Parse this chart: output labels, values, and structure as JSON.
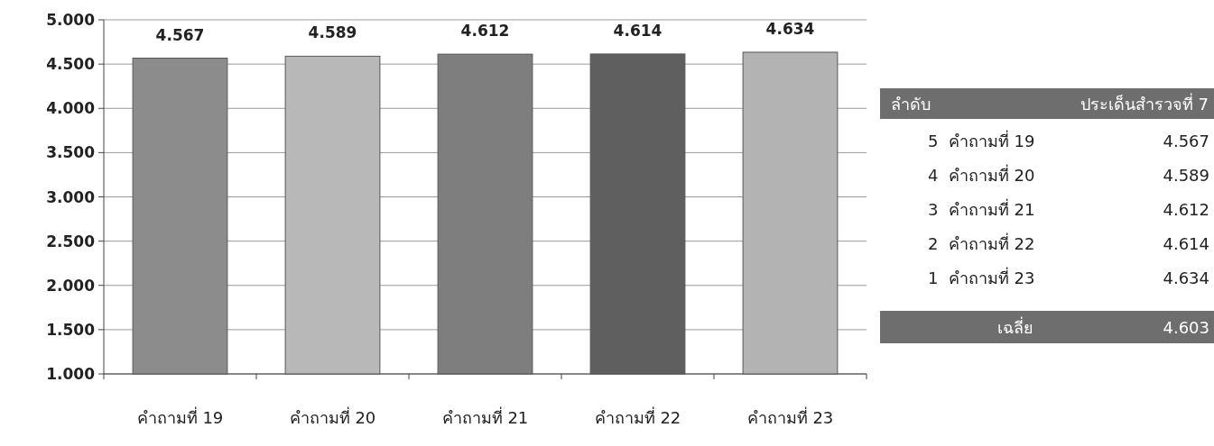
{
  "chart_data": [
    {
      "type": "bar",
      "categories": [
        "คำถามที่ 19",
        "คำถามที่ 20",
        "คำถามที่ 21",
        "คำถามที่ 22",
        "คำถามที่ 23"
      ],
      "values": [
        4.567,
        4.589,
        4.612,
        4.614,
        4.634
      ],
      "colors": [
        "#8c8c8c",
        "#b8b8b8",
        "#7e7e7e",
        "#5f5f5f",
        "#b3b3b3"
      ],
      "ylim": [
        1,
        5
      ],
      "yticks": [
        {
          "value": 1,
          "label": "1.000"
        },
        {
          "value": 1.5,
          "label": "1.500"
        },
        {
          "value": 2,
          "label": "2.000"
        },
        {
          "value": 2.5,
          "label": "2.500"
        },
        {
          "value": 3,
          "label": "3.000"
        },
        {
          "value": 3.5,
          "label": "3.500"
        },
        {
          "value": 4,
          "label": "4.000"
        },
        {
          "value": 4.5,
          "label": "4.500"
        },
        {
          "value": 5,
          "label": "5.000"
        }
      ],
      "grid": "y",
      "data_labels": true
    },
    {
      "type": "other",
      "annotations": [
        "ลำดับ",
        "ประเด็นสำรวจที่ 7",
        "5  คำถามที่ 19",
        "4.567",
        "4  คำถามที่ 20",
        "4.589",
        "3  คำถามที่ 21",
        "4.612",
        "2  คำถามที่ 22",
        "4.614",
        "1  คำถามที่ 23",
        "4.634",
        "เฉลี่ย",
        "4.603"
      ]
    }
  ]
}
